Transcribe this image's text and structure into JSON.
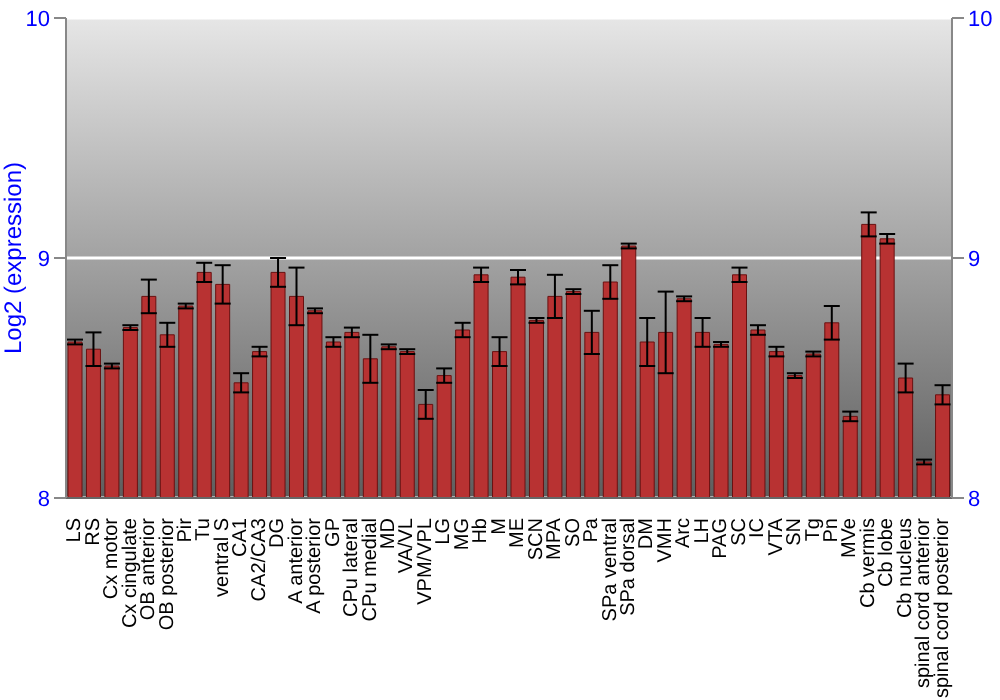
{
  "chart_data": {
    "type": "bar",
    "ylabel": "Log2 (expression)",
    "categories": [
      "LS",
      "RS",
      "Cx motor",
      "Cx cingulate",
      "OB anterior",
      "OB posterior",
      "Pir",
      "Tu",
      "ventral S",
      "CA1",
      "CA2/CA3",
      "DG",
      "A anterior",
      "A posterior",
      "GP",
      "CPu lateral",
      "CPu medial",
      "MD",
      "VA/VL",
      "VPM/VPL",
      "LG",
      "MG",
      "Hb",
      "M",
      "ME",
      "SCN",
      "MPA",
      "SO",
      "Pa",
      "SPa ventral",
      "SPa dorsal",
      "DM",
      "VMH",
      "Arc",
      "LH",
      "PAG",
      "SC",
      "IC",
      "VTA",
      "SN",
      "Tg",
      "Pn",
      "MVe",
      "Cb vermis",
      "Cb lobe",
      "Cb nucleus",
      "spinal cord anterior",
      "spinal cord posterior"
    ],
    "values": [
      8.65,
      8.62,
      8.55,
      8.71,
      8.84,
      8.68,
      8.8,
      8.94,
      8.89,
      8.48,
      8.61,
      8.94,
      8.84,
      8.78,
      8.65,
      8.69,
      8.58,
      8.63,
      8.61,
      8.39,
      8.51,
      8.7,
      8.93,
      8.61,
      8.92,
      8.74,
      8.84,
      8.86,
      8.69,
      8.9,
      9.05,
      8.65,
      8.69,
      8.83,
      8.69,
      8.64,
      8.93,
      8.7,
      8.61,
      8.51,
      8.6,
      8.73,
      8.34,
      9.14,
      9.08,
      8.5,
      8.15,
      8.43
    ],
    "errors": [
      0.01,
      0.07,
      0.01,
      0.01,
      0.07,
      0.05,
      0.01,
      0.04,
      0.08,
      0.04,
      0.02,
      0.06,
      0.12,
      0.01,
      0.02,
      0.02,
      0.1,
      0.01,
      0.01,
      0.06,
      0.03,
      0.03,
      0.03,
      0.06,
      0.03,
      0.01,
      0.09,
      0.01,
      0.09,
      0.07,
      0.01,
      0.1,
      0.17,
      0.01,
      0.06,
      0.01,
      0.03,
      0.02,
      0.02,
      0.01,
      0.01,
      0.07,
      0.02,
      0.05,
      0.02,
      0.06,
      0.01,
      0.04
    ],
    "color": "#b83232",
    "ylim": [
      8,
      10
    ],
    "yticks": [
      8,
      9,
      10
    ],
    "y2lim": [
      8,
      10
    ],
    "y2ticks": [
      8,
      9,
      10
    ],
    "grid": "y"
  }
}
